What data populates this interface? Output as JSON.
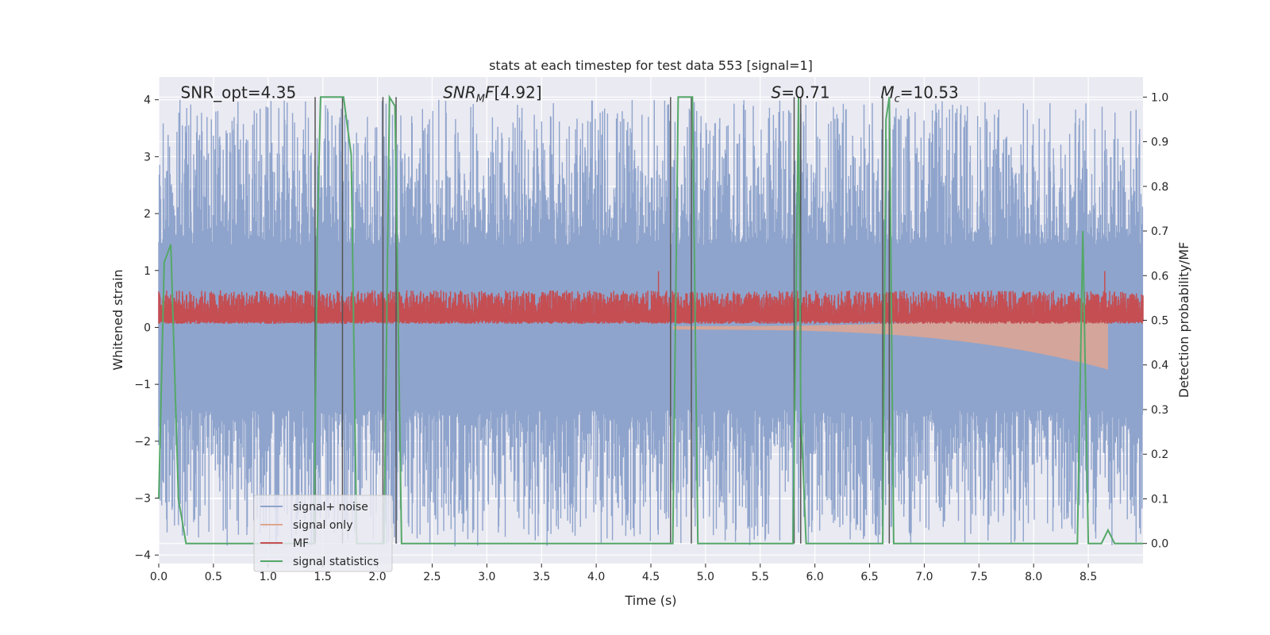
{
  "chart_data": {
    "type": "line",
    "title": "stats at each timestep for test data 553 [signal=1]",
    "xlabel": "Time (s)",
    "ylabel": "Whitened strain",
    "y2label": "Detection probability/MF",
    "xlim": [
      0.0,
      9.0
    ],
    "ylim": [
      -4.15,
      4.4
    ],
    "y2lim": [
      -0.045,
      1.045
    ],
    "xticks": [
      0.0,
      0.5,
      1.0,
      1.5,
      2.0,
      2.5,
      3.0,
      3.5,
      4.0,
      4.5,
      5.0,
      5.5,
      6.0,
      6.5,
      7.0,
      7.5,
      8.0,
      8.5
    ],
    "xtick_labels": [
      "0.0",
      "0.5",
      "1.0",
      "1.5",
      "2.0",
      "2.5",
      "3.0",
      "3.5",
      "4.0",
      "4.5",
      "5.0",
      "5.5",
      "6.0",
      "6.5",
      "7.0",
      "7.5",
      "8.0",
      "8.5"
    ],
    "yticks": [
      -4,
      -3,
      -2,
      -1,
      0,
      1,
      2,
      3,
      4
    ],
    "ytick_labels": [
      "−4",
      "−3",
      "−2",
      "−1",
      "0",
      "1",
      "2",
      "3",
      "4"
    ],
    "y2ticks": [
      0.0,
      0.1,
      0.2,
      0.3,
      0.4,
      0.5,
      0.6,
      0.7,
      0.8,
      0.9,
      1.0
    ],
    "y2tick_labels": [
      "0.0",
      "0.1",
      "0.2",
      "0.3",
      "0.4",
      "0.5",
      "0.6",
      "0.7",
      "0.8",
      "0.9",
      "1.0"
    ],
    "grid": true,
    "legend_position": "lower-left",
    "annotations": [
      {
        "id": "snr-opt",
        "text": "SNR_opt=4.35",
        "x": 0.2
      },
      {
        "id": "snr-mf",
        "text": "[4.92]",
        "x": 2.6
      },
      {
        "id": "spin",
        "text": "=0.71",
        "x": 5.6
      },
      {
        "id": "chirp-mass",
        "text": "=10.53",
        "x": 6.6
      }
    ],
    "annotation_y": 4.0,
    "noise_band": {
      "color": "#8fa4cc",
      "sample_step": 0.0045,
      "core_low": -1.45,
      "core_high": 1.45,
      "max_low": -3.85,
      "max_high": 4.0
    },
    "signal_only": {
      "color": "#e0a690",
      "start": 4.7,
      "end": 8.68,
      "max_amplitude": 0.7
    },
    "mf": {
      "color": "#c44e52",
      "y2_baseline": 0.5,
      "y2_high": 0.555,
      "peaks": [
        [
          4.57,
          0.61
        ],
        [
          8.65,
          0.61
        ]
      ]
    },
    "signal_statistics": {
      "color": "#55a868",
      "x": [
        0.0,
        0.05,
        0.11,
        0.18,
        0.25,
        1.42,
        1.45,
        1.48,
        1.69,
        1.76,
        1.81,
        2.06,
        2.11,
        2.16,
        2.22,
        4.7,
        4.75,
        4.88,
        4.93,
        5.8,
        5.82,
        5.85,
        5.87,
        5.92,
        6.62,
        6.65,
        6.68,
        6.72,
        8.4,
        8.45,
        8.5,
        8.62,
        8.68,
        8.74,
        9.0
      ],
      "y": [
        0.1,
        0.63,
        0.67,
        0.1,
        0.0,
        0.0,
        0.7,
        1.0,
        1.0,
        0.87,
        0.0,
        0.0,
        1.0,
        0.98,
        0.0,
        0.0,
        1.0,
        1.0,
        0.0,
        0.0,
        0.4,
        1.0,
        0.3,
        0.0,
        0.0,
        0.95,
        1.0,
        0.0,
        0.0,
        0.7,
        0.0,
        0.0,
        0.03,
        0.0,
        0.0
      ]
    },
    "vertical_markers": {
      "color": "#555555",
      "x": [
        1.43,
        1.68,
        2.05,
        2.17,
        4.68,
        4.87,
        5.81,
        5.87,
        6.62,
        6.68
      ]
    },
    "series": [
      {
        "name": "signal+ noise",
        "color": "#8fa4cc"
      },
      {
        "name": "signal only",
        "color": "#e0a690"
      },
      {
        "name": "MF",
        "color": "#c44e52"
      },
      {
        "name": "signal statistics",
        "color": "#55a868"
      }
    ]
  }
}
